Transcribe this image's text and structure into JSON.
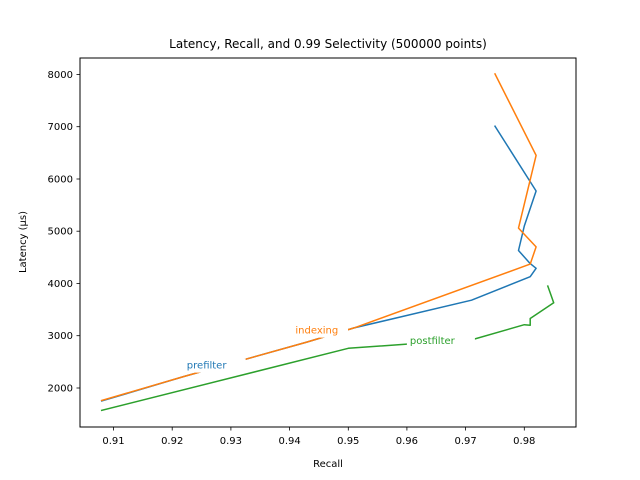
{
  "chart_data": {
    "type": "line",
    "title": "Latency, Recall, and 0.99 Selectivity (500000 points)",
    "xlabel": "Recall",
    "ylabel": "Latency (µs)",
    "xlim": [
      0.9043,
      0.9888
    ],
    "ylim": [
      1253,
      8315
    ],
    "xticks": [
      0.91,
      0.92,
      0.93,
      0.94,
      0.95,
      0.96,
      0.97,
      0.98
    ],
    "xtick_labels": [
      "0.91",
      "0.92",
      "0.93",
      "0.94",
      "0.95",
      "0.96",
      "0.97",
      "0.98"
    ],
    "yticks": [
      2000,
      3000,
      4000,
      5000,
      6000,
      7000,
      8000
    ],
    "ytick_labels": [
      "2000",
      "3000",
      "4000",
      "5000",
      "6000",
      "7000",
      "8000"
    ],
    "grid": false,
    "series": [
      {
        "name": "prefilter",
        "color": "#1f77b4",
        "label_at": [
          0.9225,
          2370
        ],
        "points": [
          [
            0.908,
            1750
          ],
          [
            0.922,
            2220
          ],
          [
            0.943,
            2880
          ],
          [
            0.951,
            3150
          ],
          [
            0.971,
            3680
          ],
          [
            0.981,
            4130
          ],
          [
            0.982,
            4290
          ],
          [
            0.981,
            4380
          ],
          [
            0.979,
            4630
          ],
          [
            0.98,
            5100
          ],
          [
            0.982,
            5770
          ],
          [
            0.975,
            7010
          ]
        ]
      },
      {
        "name": "indexing",
        "color": "#ff7f0e",
        "label_at": [
          0.941,
          3040
        ],
        "points": [
          [
            0.908,
            1760
          ],
          [
            0.922,
            2220
          ],
          [
            0.943,
            2880
          ],
          [
            0.951,
            3150
          ],
          [
            0.981,
            4370
          ],
          [
            0.982,
            4700
          ],
          [
            0.979,
            5060
          ],
          [
            0.982,
            6450
          ],
          [
            0.975,
            8010
          ]
        ]
      },
      {
        "name": "postfilter",
        "color": "#2ca02c",
        "label_at": [
          0.9605,
          2840
        ],
        "points": [
          [
            0.908,
            1570
          ],
          [
            0.95,
            2760
          ],
          [
            0.96,
            2840
          ],
          [
            0.971,
            2920
          ],
          [
            0.98,
            3210
          ],
          [
            0.981,
            3200
          ],
          [
            0.981,
            3330
          ],
          [
            0.985,
            3630
          ],
          [
            0.984,
            3950
          ]
        ]
      }
    ]
  }
}
